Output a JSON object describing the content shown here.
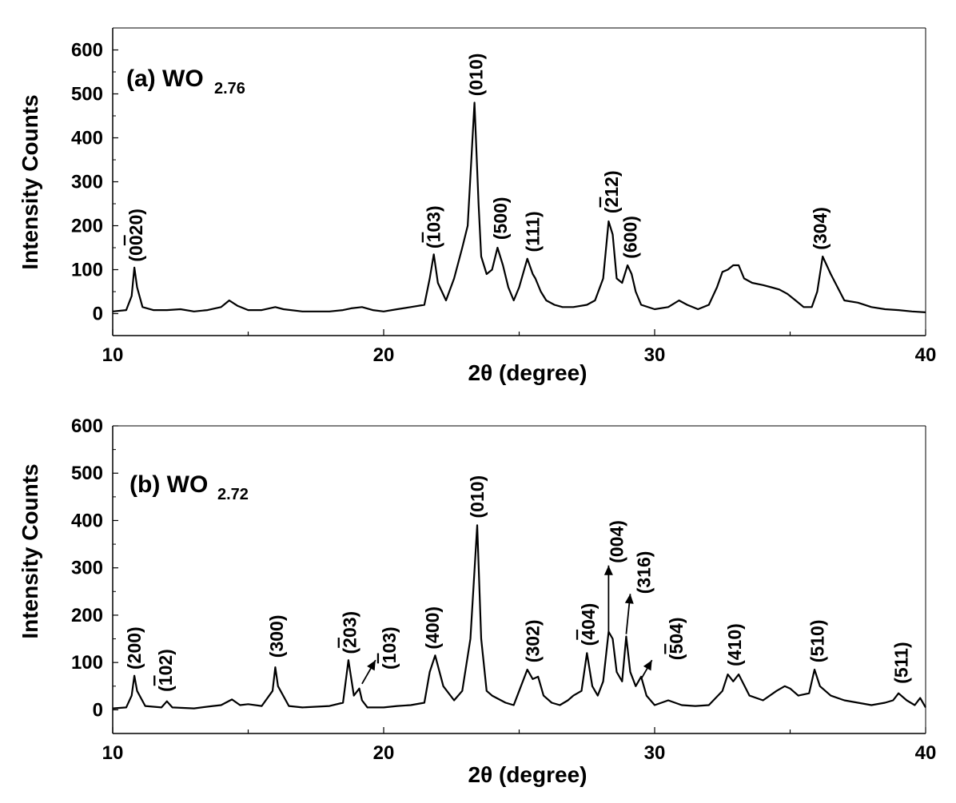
{
  "colors": {
    "line": "#000000",
    "background": "#ffffff"
  },
  "chart_data": [
    {
      "type": "line",
      "panel_label": "(a) WO",
      "panel_subscript": "2.76",
      "xlabel": "2θ (degree)",
      "ylabel": "Intensity Counts",
      "xlim": [
        10,
        40
      ],
      "ylim": [
        -50,
        650
      ],
      "xticks": [
        10,
        20,
        30,
        40
      ],
      "yticks": [
        0,
        100,
        200,
        300,
        400,
        500,
        600
      ],
      "grid": false,
      "series": [
        {
          "x": [
            10.0,
            10.5,
            10.7,
            10.8,
            10.9,
            11.1,
            11.5,
            12.0,
            12.5,
            13.0,
            13.5,
            14.0,
            14.3,
            14.6,
            15.0,
            15.5,
            16.0,
            16.3,
            17.0,
            18.0,
            18.5,
            18.8,
            19.2,
            19.6,
            20.0,
            20.5,
            21.0,
            21.5,
            21.7,
            21.85,
            22.0,
            22.3,
            22.6,
            22.9,
            23.1,
            23.35,
            23.5,
            23.6,
            23.8,
            24.0,
            24.2,
            24.4,
            24.6,
            24.8,
            25.0,
            25.3,
            25.5,
            25.6,
            25.8,
            26.0,
            26.3,
            26.6,
            27.0,
            27.5,
            27.8,
            28.1,
            28.3,
            28.45,
            28.6,
            28.8,
            29.0,
            29.15,
            29.3,
            29.5,
            30.0,
            30.5,
            30.9,
            31.2,
            31.6,
            32.0,
            32.3,
            32.5,
            32.7,
            32.9,
            33.1,
            33.3,
            33.6,
            34.0,
            34.3,
            34.6,
            34.9,
            35.2,
            35.5,
            35.8,
            36.0,
            36.2,
            36.5,
            37.0,
            37.5,
            38.0,
            38.5,
            39.0,
            39.5,
            40.0
          ],
          "y": [
            5,
            8,
            40,
            105,
            60,
            15,
            8,
            8,
            10,
            5,
            8,
            15,
            30,
            18,
            8,
            8,
            15,
            10,
            5,
            5,
            8,
            12,
            15,
            8,
            5,
            10,
            15,
            20,
            80,
            135,
            70,
            30,
            80,
            150,
            200,
            480,
            250,
            130,
            90,
            100,
            150,
            110,
            60,
            30,
            60,
            125,
            90,
            80,
            50,
            30,
            20,
            15,
            15,
            20,
            30,
            80,
            210,
            180,
            80,
            70,
            110,
            90,
            50,
            20,
            10,
            15,
            30,
            20,
            10,
            20,
            60,
            95,
            100,
            110,
            110,
            80,
            70,
            65,
            60,
            55,
            45,
            30,
            15,
            15,
            50,
            130,
            90,
            30,
            25,
            15,
            10,
            8,
            5,
            3
          ]
        }
      ],
      "annotations": [
        {
          "text": "(0",
          "bar": "0",
          "rest": "20)",
          "x": 10.85,
          "y": 118
        },
        {
          "text": "(",
          "bar": "1",
          "rest": "03)",
          "x": 21.85,
          "y": 148
        },
        {
          "text": "(010)",
          "bar": "",
          "rest": "",
          "x": 23.4,
          "y": 495
        },
        {
          "text": "(500)",
          "bar": "",
          "rest": "",
          "x": 24.3,
          "y": 168
        },
        {
          "text": "(111)",
          "bar": "",
          "rest": "",
          "x": 25.5,
          "y": 140
        },
        {
          "text": "(",
          "bar": "2",
          "rest": "12)",
          "x": 28.4,
          "y": 228
        },
        {
          "text": "(600)",
          "bar": "",
          "rest": "",
          "x": 29.1,
          "y": 125
        },
        {
          "text": "(304)",
          "bar": "",
          "rest": "",
          "x": 36.1,
          "y": 145
        }
      ]
    },
    {
      "type": "line",
      "panel_label": "(b) WO",
      "panel_subscript": "2.72",
      "xlabel": "2θ (degree)",
      "ylabel": "Intensity Counts",
      "xlim": [
        10,
        40
      ],
      "ylim": [
        -50,
        600
      ],
      "xticks": [
        10,
        20,
        30,
        40
      ],
      "yticks": [
        0,
        100,
        200,
        300,
        400,
        500,
        600
      ],
      "grid": false,
      "series": [
        {
          "x": [
            10.0,
            10.5,
            10.7,
            10.8,
            10.9,
            11.2,
            11.8,
            12.0,
            12.2,
            13.0,
            13.7,
            14.0,
            14.4,
            14.7,
            15.0,
            15.5,
            15.9,
            16.0,
            16.1,
            16.5,
            17.0,
            18.0,
            18.5,
            18.7,
            18.9,
            19.1,
            19.2,
            19.4,
            20.0,
            20.5,
            21.0,
            21.5,
            21.7,
            21.9,
            22.2,
            22.6,
            22.9,
            23.2,
            23.45,
            23.6,
            23.8,
            24.0,
            24.5,
            24.8,
            25.0,
            25.3,
            25.5,
            25.7,
            25.9,
            26.2,
            26.5,
            26.8,
            27.0,
            27.3,
            27.5,
            27.7,
            27.9,
            28.1,
            28.3,
            28.45,
            28.6,
            28.8,
            28.95,
            29.1,
            29.3,
            29.5,
            29.7,
            30.0,
            30.5,
            31.0,
            31.5,
            32.0,
            32.5,
            32.7,
            32.9,
            33.1,
            33.5,
            34.0,
            34.5,
            34.8,
            35.0,
            35.3,
            35.7,
            35.9,
            36.1,
            36.5,
            37.0,
            37.5,
            38.0,
            38.5,
            38.8,
            39.0,
            39.3,
            39.6,
            39.8,
            40.0
          ],
          "y": [
            3,
            5,
            30,
            72,
            40,
            8,
            5,
            18,
            5,
            3,
            8,
            10,
            22,
            10,
            12,
            8,
            40,
            90,
            50,
            8,
            5,
            8,
            15,
            105,
            30,
            45,
            20,
            5,
            5,
            8,
            10,
            15,
            80,
            115,
            50,
            20,
            40,
            150,
            390,
            150,
            40,
            30,
            15,
            10,
            40,
            85,
            65,
            70,
            30,
            15,
            10,
            20,
            30,
            40,
            120,
            50,
            30,
            60,
            165,
            150,
            80,
            60,
            155,
            80,
            50,
            70,
            30,
            10,
            20,
            10,
            8,
            10,
            40,
            75,
            60,
            75,
            30,
            20,
            40,
            50,
            45,
            30,
            35,
            85,
            50,
            30,
            20,
            15,
            10,
            15,
            20,
            35,
            20,
            10,
            25,
            5
          ]
        }
      ],
      "annotations": [
        {
          "text": "(200)",
          "bar": "",
          "rest": "",
          "x": 10.8,
          "y": 85
        },
        {
          "text": "(",
          "bar": "1",
          "rest": "02)",
          "x": 11.95,
          "y": 38
        },
        {
          "text": "(300)",
          "bar": "",
          "rest": "",
          "x": 16.05,
          "y": 110
        },
        {
          "text": "(",
          "bar": "2",
          "rest": "03)",
          "x": 18.75,
          "y": 118
        },
        {
          "text": "(",
          "bar": "1",
          "rest": "03)",
          "x": 20.2,
          "y": 85
        },
        {
          "text": "(400)",
          "bar": "",
          "rest": "",
          "x": 21.8,
          "y": 128
        },
        {
          "text": "(010)",
          "bar": "",
          "rest": "",
          "x": 23.45,
          "y": 405
        },
        {
          "text": "(302)",
          "bar": "",
          "rest": "",
          "x": 25.5,
          "y": 100
        },
        {
          "text": "(",
          "bar": "4",
          "rest": "04)",
          "x": 27.55,
          "y": 135
        },
        {
          "text": "(004)",
          "bar": "",
          "rest": "",
          "x": 28.6,
          "y": 310
        },
        {
          "text": "(316)",
          "bar": "",
          "rest": "",
          "x": 29.6,
          "y": 245
        },
        {
          "text": "(",
          "bar": "5",
          "rest": "04)",
          "x": 30.8,
          "y": 105
        },
        {
          "text": "(410)",
          "bar": "",
          "rest": "",
          "x": 32.95,
          "y": 92
        },
        {
          "text": "(510)",
          "bar": "",
          "rest": "",
          "x": 36.0,
          "y": 100
        },
        {
          "text": "(511)",
          "bar": "",
          "rest": "",
          "x": 39.1,
          "y": 55
        }
      ],
      "arrows": [
        {
          "from": [
            19.2,
            55
          ],
          "to": [
            19.7,
            105
          ]
        },
        {
          "from": [
            28.3,
            160
          ],
          "to": [
            28.3,
            305
          ]
        },
        {
          "from": [
            28.95,
            160
          ],
          "to": [
            29.1,
            245
          ]
        },
        {
          "from": [
            29.5,
            65
          ],
          "to": [
            29.9,
            105
          ]
        }
      ]
    }
  ]
}
